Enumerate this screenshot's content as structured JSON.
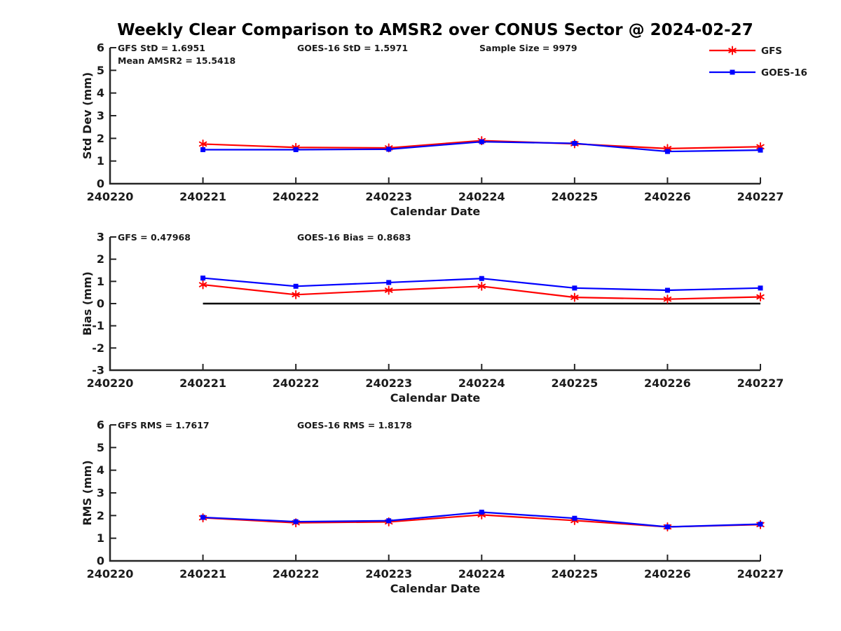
{
  "title": "Weekly Clear Comparison to AMSR2 over CONUS Sector @ 2024-02-27",
  "legend": {
    "items": [
      {
        "label": "GFS",
        "color": "#FF0000",
        "marker": "asterisk"
      },
      {
        "label": "GOES-16",
        "color": "#0000FF",
        "marker": "square"
      }
    ]
  },
  "colors": {
    "gfs": "#FF0000",
    "goes16": "#0000FF",
    "axis": "#262626",
    "zero_line": "#000000"
  },
  "chart_data": [
    {
      "type": "line",
      "title": "",
      "ylabel": "Std Dev (mm)",
      "xlabel": "Calendar Date",
      "ylim": [
        0,
        6
      ],
      "yticks": [
        0,
        1,
        2,
        3,
        4,
        5,
        6
      ],
      "xticks": [
        "240220",
        "240221",
        "240222",
        "240223",
        "240224",
        "240225",
        "240226",
        "240227"
      ],
      "x": [
        240221,
        240222,
        240223,
        240224,
        240225,
        240226,
        240227
      ],
      "series": [
        {
          "name": "GFS",
          "color": "#FF0000",
          "marker": "asterisk",
          "values": [
            1.75,
            1.6,
            1.58,
            1.9,
            1.76,
            1.55,
            1.63
          ]
        },
        {
          "name": "GOES-16",
          "color": "#0000FF",
          "marker": "square",
          "values": [
            1.5,
            1.5,
            1.52,
            1.85,
            1.78,
            1.42,
            1.48
          ]
        }
      ],
      "annotations": [
        {
          "text": "GFS StD = 1.6951",
          "col": 0,
          "line": 0
        },
        {
          "text": "Mean AMSR2 = 15.5418",
          "col": 0,
          "line": 1
        },
        {
          "text": "GOES-16 StD = 1.5971",
          "col": 1,
          "line": 0
        },
        {
          "text": "Sample Size = 9979",
          "col": 2,
          "line": 0
        }
      ],
      "zero_line": false,
      "grid": false,
      "legend_position": "top-right"
    },
    {
      "type": "line",
      "title": "",
      "ylabel": "Bias (mm)",
      "xlabel": "Calendar Date",
      "ylim": [
        -3,
        3
      ],
      "yticks": [
        -3,
        -2,
        -1,
        0,
        1,
        2,
        3
      ],
      "xticks": [
        "240220",
        "240221",
        "240222",
        "240223",
        "240224",
        "240225",
        "240226",
        "240227"
      ],
      "x": [
        240221,
        240222,
        240223,
        240224,
        240225,
        240226,
        240227
      ],
      "series": [
        {
          "name": "GFS",
          "color": "#FF0000",
          "marker": "asterisk",
          "values": [
            0.85,
            0.4,
            0.6,
            0.78,
            0.28,
            0.2,
            0.3
          ]
        },
        {
          "name": "GOES-16",
          "color": "#0000FF",
          "marker": "square",
          "values": [
            1.15,
            0.78,
            0.95,
            1.13,
            0.7,
            0.6,
            0.7
          ]
        }
      ],
      "annotations": [
        {
          "text": "GFS = 0.47968",
          "col": 0,
          "line": 0
        },
        {
          "text": "GOES-16 Bias  = 0.8683",
          "col": 1,
          "line": 0
        }
      ],
      "zero_line": true,
      "grid": false
    },
    {
      "type": "line",
      "title": "",
      "ylabel": "RMS (mm)",
      "xlabel": "Calendar Date",
      "ylim": [
        0,
        6
      ],
      "yticks": [
        0,
        1,
        2,
        3,
        4,
        5,
        6
      ],
      "xticks": [
        "240220",
        "240221",
        "240222",
        "240223",
        "240224",
        "240225",
        "240226",
        "240227"
      ],
      "x": [
        240221,
        240222,
        240223,
        240224,
        240225,
        240226,
        240227
      ],
      "series": [
        {
          "name": "GFS",
          "color": "#FF0000",
          "marker": "asterisk",
          "values": [
            1.9,
            1.68,
            1.72,
            2.03,
            1.78,
            1.5,
            1.6
          ]
        },
        {
          "name": "GOES-16",
          "color": "#0000FF",
          "marker": "square",
          "values": [
            1.92,
            1.73,
            1.77,
            2.15,
            1.88,
            1.5,
            1.62
          ]
        }
      ],
      "annotations": [
        {
          "text": "GFS RMS = 1.7617",
          "col": 0,
          "line": 0
        },
        {
          "text": "GOES-16 RMS = 1.8178",
          "col": 1,
          "line": 0
        }
      ],
      "zero_line": false,
      "grid": false
    }
  ]
}
